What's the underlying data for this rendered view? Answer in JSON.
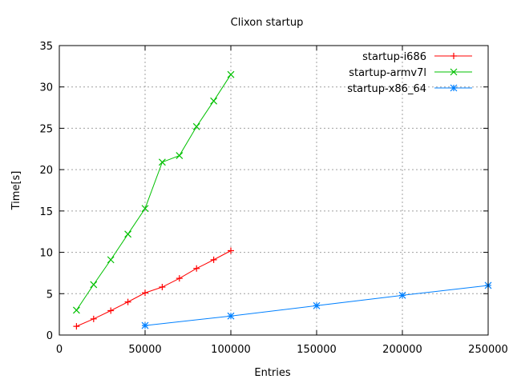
{
  "chart_data": {
    "type": "line",
    "title": "Clixon startup",
    "xlabel": "Entries",
    "ylabel": "Time[s]",
    "xlim": [
      0,
      250000
    ],
    "ylim": [
      0,
      35
    ],
    "xticks": [
      "0",
      "50000",
      "100000",
      "150000",
      "200000",
      "250000"
    ],
    "yticks": [
      "0",
      "5",
      "10",
      "15",
      "20",
      "25",
      "30",
      "35"
    ],
    "grid": true,
    "legend_position": "top-right",
    "series": [
      {
        "name": "startup-i686",
        "color": "#ff0000",
        "marker": "plus",
        "x": [
          10000,
          20000,
          30000,
          40000,
          50000,
          60000,
          70000,
          80000,
          90000,
          100000
        ],
        "y": [
          1.05,
          1.95,
          2.95,
          4.0,
          5.1,
          5.8,
          6.85,
          8.05,
          9.1,
          10.2
        ]
      },
      {
        "name": "startup-armv7l",
        "color": "#00c000",
        "marker": "cross",
        "x": [
          10000,
          20000,
          30000,
          40000,
          50000,
          60000,
          70000,
          80000,
          90000,
          100000
        ],
        "y": [
          3.0,
          6.1,
          9.1,
          12.2,
          15.3,
          20.9,
          21.7,
          25.2,
          28.3,
          31.5
        ]
      },
      {
        "name": "startup-x86_64",
        "color": "#0080ff",
        "marker": "star",
        "x": [
          50000,
          100000,
          150000,
          200000,
          250000
        ],
        "y": [
          1.15,
          2.3,
          3.55,
          4.8,
          6.0
        ]
      }
    ]
  }
}
